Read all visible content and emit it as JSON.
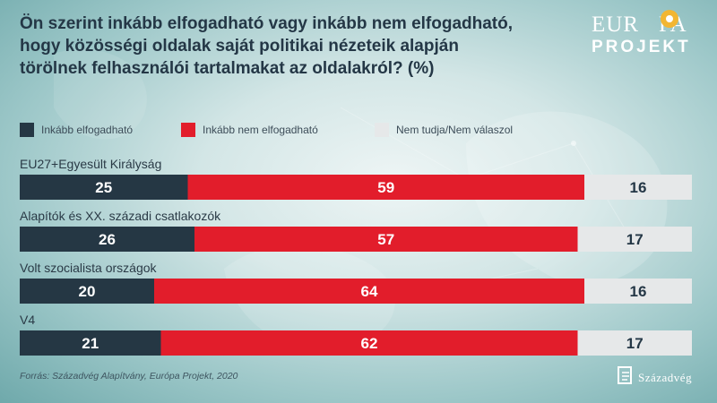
{
  "title": "Ön szerint inkább elfogadható vagy inkább nem elfogadható, hogy közösségi oldalak saját politikai nézeteik alapján törölnek felhasználói tartalmakat az oldalakról? (%)",
  "logo": {
    "top": "EUR",
    "top_end": "PA",
    "bottom": "PROJEKT"
  },
  "source": "Forrás: Századvég Alapítvány, Európa Projekt, 2020",
  "brand": "Századvég",
  "colors": {
    "dark": "#253744",
    "red": "#e21d2b",
    "light": "#e6e8e9"
  },
  "chart_data": {
    "type": "bar",
    "orientation": "horizontal",
    "stacked": true,
    "categories": [
      "EU27+Egyesült Királyság",
      "Alapítók és XX. századi csatlakozók",
      "Volt szocialista országok",
      "V4"
    ],
    "series": [
      {
        "name": "Inkább elfogadható",
        "values": [
          25,
          26,
          20,
          21
        ],
        "color": "#253744"
      },
      {
        "name": "Inkább nem elfogadható",
        "values": [
          59,
          57,
          64,
          62
        ],
        "color": "#e21d2b"
      },
      {
        "name": "Nem tudja/Nem válaszol",
        "values": [
          16,
          17,
          16,
          17
        ],
        "color": "#e6e8e9"
      }
    ],
    "xlim": [
      0,
      100
    ],
    "legend": "top-left",
    "grid": false
  }
}
